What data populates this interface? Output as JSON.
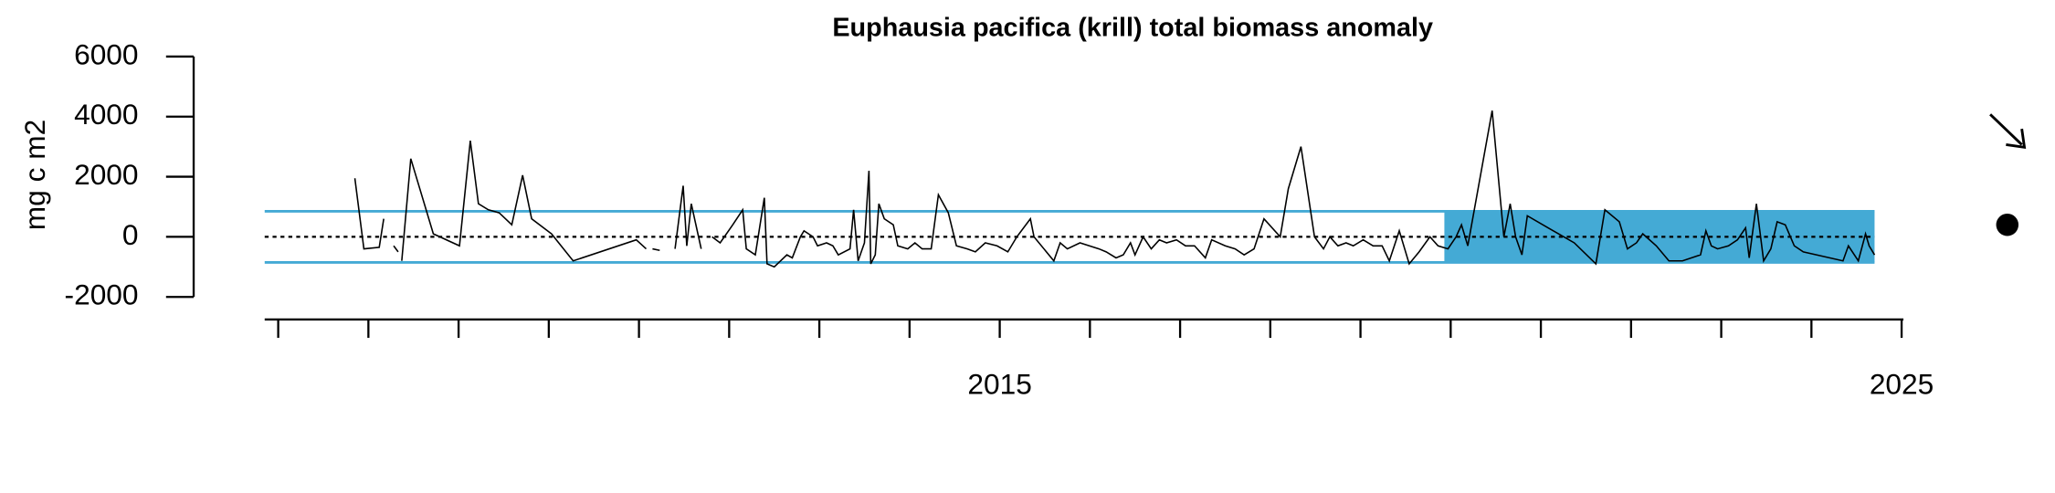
{
  "chart_data": {
    "type": "line",
    "title": "Euphausia pacifica (krill) total biomass anomaly",
    "ylabel": "mg c m2",
    "xlim": [
      2006.85,
      2025.02
    ],
    "xticks": [
      {
        "value": 2007,
        "label": null
      },
      {
        "value": 2008,
        "label": null
      },
      {
        "value": 2009,
        "label": null
      },
      {
        "value": 2010,
        "label": null
      },
      {
        "value": 2011,
        "label": null
      },
      {
        "value": 2012,
        "label": null
      },
      {
        "value": 2013,
        "label": null
      },
      {
        "value": 2014,
        "label": null
      },
      2015,
      {
        "value": 2016,
        "label": null
      },
      {
        "value": 2017,
        "label": null
      },
      {
        "value": 2018,
        "label": null
      },
      {
        "value": 2019,
        "label": null
      },
      {
        "value": 2020,
        "label": null
      },
      {
        "value": 2021,
        "label": null
      },
      {
        "value": 2022,
        "label": null
      },
      {
        "value": 2023,
        "label": null
      },
      {
        "value": 2024,
        "label": null
      },
      2025
    ],
    "ylim": [
      -2750,
      6000
    ],
    "yticks": [
      -2000,
      0,
      2000,
      4000,
      6000
    ],
    "mean": 0,
    "sd": 850,
    "band_color": "#44aad5",
    "shade": [
      2019.93,
      2024.7
    ],
    "series": [
      {
        "color": "#000000",
        "x": [
          2007.85,
          2007.95,
          2008.12,
          2008.17,
          null,
          2008.28,
          2008.33,
          null,
          2008.37,
          2008.47,
          2008.72,
          2009.01,
          2009.13,
          2009.22,
          2009.33,
          2009.45,
          2009.59,
          2009.71,
          2009.81,
          2010.03,
          2010.27,
          2010.97,
          2011.08,
          null,
          2011.15,
          2011.23,
          null,
          2011.4,
          2011.49,
          2011.53,
          2011.58,
          2011.69,
          null,
          2011.81,
          2011.9,
          2012.04,
          2012.15,
          2012.19,
          2012.29,
          2012.39,
          2012.42,
          2012.5,
          2012.64,
          2012.7,
          2012.79,
          2012.83,
          2012.93,
          2012.98,
          2013.08,
          2013.15,
          2013.21,
          2013.34,
          2013.38,
          2013.43,
          2013.5,
          2013.55,
          2013.57,
          2013.62,
          2013.66,
          2013.72,
          2013.82,
          2013.87,
          2013.98,
          2014.06,
          2014.14,
          2014.24,
          2014.32,
          2014.43,
          2014.52,
          2014.64,
          2014.73,
          2014.84,
          2014.97,
          2015.09,
          2015.19,
          2015.34,
          2015.38,
          2015.6,
          2015.67,
          2015.75,
          2015.89,
          2016.1,
          2016.18,
          2016.29,
          2016.37,
          2016.45,
          2016.5,
          2016.59,
          2016.68,
          2016.77,
          2016.85,
          2016.96,
          2017.06,
          2017.16,
          2017.28,
          2017.35,
          2017.5,
          2017.61,
          2017.71,
          2017.82,
          2017.93,
          2018.11,
          2018.2,
          2018.34,
          2018.49,
          2018.59,
          2018.66,
          2018.75,
          2018.84,
          2018.92,
          2019.03,
          2019.14,
          2019.24,
          2019.32,
          2019.43,
          2019.54,
          2019.65,
          2019.77,
          2019.86,
          2019.97,
          2020.06,
          2020.12,
          2020.19,
          2020.46,
          2020.59,
          2020.66,
          2020.72,
          2020.79,
          2020.85,
          2021.08,
          2021.37,
          2021.61,
          2021.71,
          2021.87,
          2021.96,
          2022.06,
          2022.13,
          2022.28,
          2022.42,
          2022.57,
          2022.77,
          2022.83,
          2022.89,
          2022.96,
          2023.08,
          2023.18,
          2023.27,
          2023.31,
          2023.39,
          2023.47,
          2023.55,
          2023.62,
          2023.71,
          2023.81,
          2023.91,
          2024.35,
          2024.41,
          2024.52,
          2024.6,
          2024.64,
          2024.7
        ],
        "values": [
          1950,
          -400,
          -350,
          600,
          null,
          -300,
          -500,
          null,
          -800,
          2600,
          100,
          -300,
          3200,
          1100,
          900,
          800,
          400,
          2050,
          600,
          100,
          -800,
          -100,
          -400,
          null,
          -400,
          -450,
          null,
          -400,
          1700,
          -300,
          1100,
          -400,
          null,
          0,
          -200,
          400,
          900,
          -400,
          -600,
          1300,
          -900,
          -1000,
          -600,
          -700,
          0,
          200,
          0,
          -300,
          -200,
          -300,
          -600,
          -400,
          900,
          -800,
          -200,
          2200,
          -900,
          -600,
          1100,
          600,
          400,
          -300,
          -400,
          -200,
          -400,
          -400,
          1400,
          800,
          -300,
          -400,
          -500,
          -200,
          -300,
          -500,
          0,
          600,
          0,
          -800,
          -200,
          -400,
          -200,
          -400,
          -500,
          -700,
          -600,
          -200,
          -600,
          0,
          -400,
          -100,
          -200,
          -100,
          -300,
          -300,
          -700,
          -100,
          -300,
          -400,
          -600,
          -400,
          600,
          0,
          1600,
          3000,
          0,
          -400,
          0,
          -300,
          -200,
          -300,
          -100,
          -300,
          -300,
          -800,
          200,
          -900,
          -500,
          0,
          -300,
          -400,
          0,
          400,
          -300,
          4200,
          0,
          1100,
          0,
          -600,
          700,
          300,
          -200,
          -900,
          900,
          500,
          -400,
          -200,
          100,
          -300,
          -800,
          -800,
          -600,
          200,
          -300,
          -400,
          -300,
          -100,
          300,
          -700,
          1100,
          -800,
          -400,
          500,
          400,
          -300,
          -500,
          -800,
          -300,
          -800,
          100,
          -300,
          -600
        ]
      }
    ]
  }
}
